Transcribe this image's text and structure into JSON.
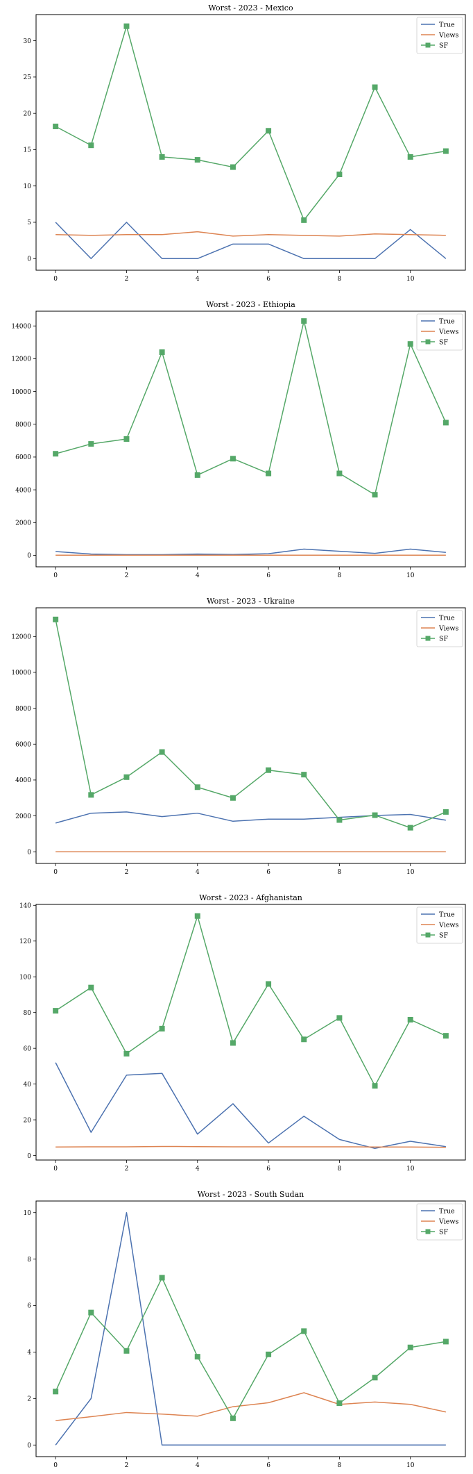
{
  "colors": {
    "True": "#4c72b0",
    "Views": "#dd8452",
    "SF": "#55a868",
    "axes": "#000000",
    "background": "#ffffff"
  },
  "legend_position": "top-right",
  "chart_data": [
    {
      "type": "line",
      "title": "Worst - 2023 - Mexico",
      "x": [
        0,
        1,
        2,
        3,
        4,
        5,
        6,
        7,
        8,
        9,
        10,
        11
      ],
      "xlim": [
        -0.55,
        11.55
      ],
      "xticks": [
        0,
        2,
        4,
        6,
        8,
        10
      ],
      "ylim": [
        -1.6,
        33.6
      ],
      "yticks": [
        0,
        5,
        10,
        15,
        20,
        25,
        30
      ],
      "grid": false,
      "series": [
        {
          "name": "True",
          "marker": "none",
          "values": [
            5,
            0,
            5,
            0,
            0,
            2,
            2,
            0,
            0,
            0,
            4,
            0
          ]
        },
        {
          "name": "Views",
          "marker": "none",
          "values": [
            3.3,
            3.2,
            3.3,
            3.3,
            3.7,
            3.1,
            3.3,
            3.2,
            3.1,
            3.4,
            3.3,
            3.2
          ]
        },
        {
          "name": "SF",
          "marker": "square",
          "values": [
            18.2,
            15.6,
            32.0,
            14.0,
            13.6,
            12.6,
            17.6,
            5.3,
            11.6,
            23.6,
            14.0,
            14.8
          ]
        }
      ]
    },
    {
      "type": "line",
      "title": "Worst - 2023 - Ethiopia",
      "x": [
        0,
        1,
        2,
        3,
        4,
        5,
        6,
        7,
        8,
        9,
        10,
        11
      ],
      "xlim": [
        -0.55,
        11.55
      ],
      "xticks": [
        0,
        2,
        4,
        6,
        8,
        10
      ],
      "ylim": [
        -700,
        14900
      ],
      "yticks": [
        0,
        2000,
        4000,
        6000,
        8000,
        10000,
        12000,
        14000
      ],
      "grid": false,
      "series": [
        {
          "name": "True",
          "marker": "none",
          "values": [
            230,
            80,
            40,
            40,
            80,
            50,
            100,
            380,
            250,
            120,
            380,
            180
          ]
        },
        {
          "name": "Views",
          "marker": "none",
          "values": [
            10,
            10,
            10,
            10,
            10,
            10,
            10,
            10,
            10,
            10,
            10,
            10
          ]
        },
        {
          "name": "SF",
          "marker": "square",
          "values": [
            6200,
            6800,
            7100,
            12400,
            4900,
            5900,
            5000,
            14300,
            5000,
            3700,
            12900,
            8100
          ]
        }
      ]
    },
    {
      "type": "line",
      "title": "Worst - 2023 - Ukraine",
      "x": [
        0,
        1,
        2,
        3,
        4,
        5,
        6,
        7,
        8,
        9,
        10,
        11
      ],
      "xlim": [
        -0.55,
        11.55
      ],
      "xticks": [
        0,
        2,
        4,
        6,
        8,
        10
      ],
      "ylim": [
        -650,
        13600
      ],
      "yticks": [
        0,
        2000,
        4000,
        6000,
        8000,
        10000,
        12000
      ],
      "grid": false,
      "series": [
        {
          "name": "True",
          "marker": "none",
          "values": [
            1600,
            2150,
            2220,
            1960,
            2150,
            1700,
            1820,
            1820,
            1920,
            2020,
            2080,
            1760
          ]
        },
        {
          "name": "Views",
          "marker": "none",
          "values": [
            0,
            0,
            0,
            0,
            0,
            0,
            0,
            0,
            0,
            0,
            0,
            0
          ]
        },
        {
          "name": "SF",
          "marker": "square",
          "values": [
            12950,
            3170,
            4160,
            5560,
            3600,
            3000,
            4550,
            4300,
            1770,
            2040,
            1340,
            2220
          ]
        }
      ]
    },
    {
      "type": "line",
      "title": "Worst - 2023 - Afghanistan",
      "x": [
        0,
        1,
        2,
        3,
        4,
        5,
        6,
        7,
        8,
        9,
        10,
        11
      ],
      "xlim": [
        -0.55,
        11.55
      ],
      "xticks": [
        0,
        2,
        4,
        6,
        8,
        10
      ],
      "ylim": [
        -2.5,
        140.5
      ],
      "yticks": [
        0,
        20,
        40,
        60,
        80,
        100,
        120,
        140
      ],
      "grid": false,
      "series": [
        {
          "name": "True",
          "marker": "none",
          "values": [
            52,
            13,
            45,
            46,
            12,
            29,
            7,
            22,
            9,
            4,
            8,
            5
          ]
        },
        {
          "name": "Views",
          "marker": "none",
          "values": [
            4.8,
            4.9,
            4.9,
            5.1,
            5.0,
            4.9,
            4.9,
            4.9,
            4.9,
            4.8,
            4.8,
            4.6
          ]
        },
        {
          "name": "SF",
          "marker": "square",
          "values": [
            81,
            94,
            57,
            71,
            134,
            63,
            96,
            65,
            77,
            39,
            76,
            67
          ]
        }
      ]
    },
    {
      "type": "line",
      "title": "Worst - 2023 - South Sudan",
      "x": [
        0,
        1,
        2,
        3,
        4,
        5,
        6,
        7,
        8,
        9,
        10,
        11
      ],
      "xlim": [
        -0.55,
        11.55
      ],
      "xticks": [
        0,
        2,
        4,
        6,
        8,
        10
      ],
      "ylim": [
        -0.5,
        10.5
      ],
      "yticks": [
        0,
        2,
        4,
        6,
        8,
        10
      ],
      "grid": false,
      "series": [
        {
          "name": "True",
          "marker": "none",
          "values": [
            0,
            2,
            10,
            0,
            0,
            0,
            0,
            0,
            0,
            0,
            0,
            0
          ]
        },
        {
          "name": "Views",
          "marker": "none",
          "values": [
            1.05,
            1.22,
            1.4,
            1.33,
            1.24,
            1.65,
            1.82,
            2.25,
            1.75,
            1.85,
            1.75,
            1.42
          ]
        },
        {
          "name": "SF",
          "marker": "square",
          "values": [
            2.3,
            5.7,
            4.05,
            7.2,
            3.8,
            1.15,
            3.9,
            4.9,
            1.8,
            2.9,
            4.2,
            4.45
          ]
        }
      ]
    }
  ]
}
